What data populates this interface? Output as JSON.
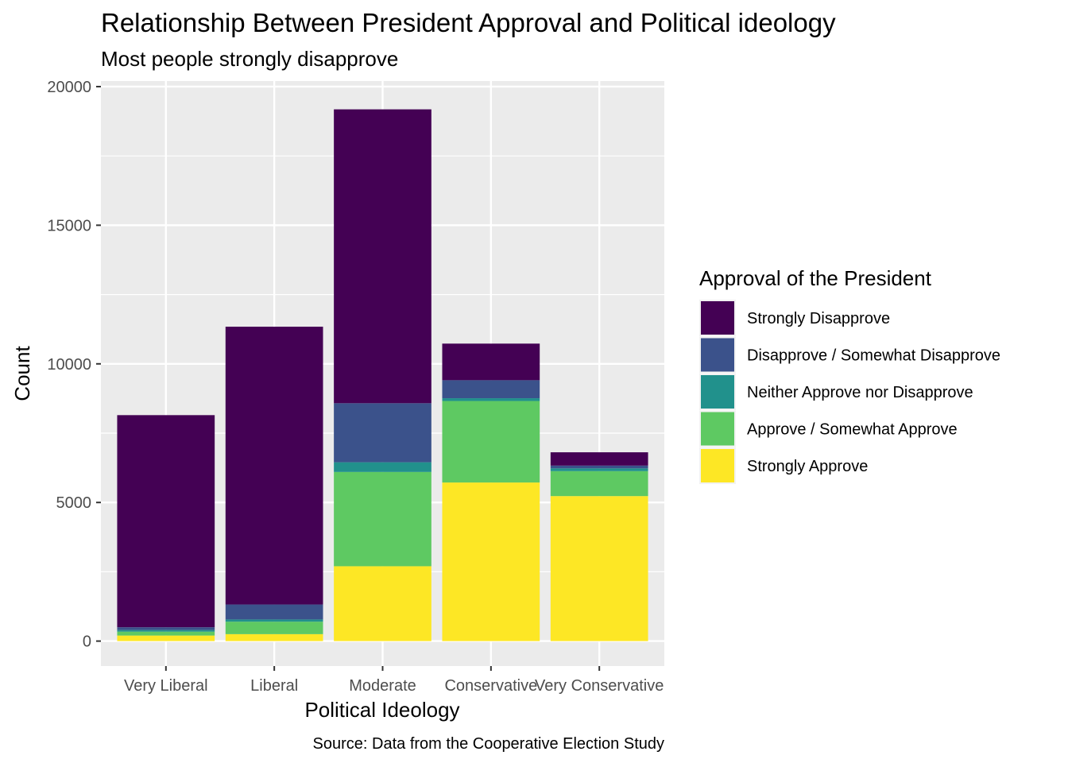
{
  "chart_data": {
    "type": "bar",
    "stacked": true,
    "title": "Relationship Between President Approval and Political ideology",
    "subtitle": "Most people strongly disapprove",
    "xlabel": "Political Ideology",
    "ylabel": "Count",
    "caption": "Source: Data from the Cooperative Election Study",
    "categories": [
      "Very Liberal",
      "Liberal",
      "Moderate",
      "Conservative",
      "Very Conservative"
    ],
    "ylim": [
      -900,
      20200
    ],
    "yticks": [
      0,
      5000,
      10000,
      15000,
      20000
    ],
    "ytick_labels": [
      "0",
      "5000",
      "10000",
      "15000",
      "20000"
    ],
    "grid": true,
    "legend": {
      "title": "Approval of the President",
      "position": "right"
    },
    "series": [
      {
        "name": "Strongly Approve",
        "color": "#FDE725",
        "values": [
          200,
          250,
          2700,
          5720,
          5230
        ]
      },
      {
        "name": "Approve / Somewhat Approve",
        "color": "#5EC962",
        "values": [
          140,
          450,
          3400,
          2940,
          900
        ]
      },
      {
        "name": "Neither Approve nor Disapprove",
        "color": "#21918C",
        "values": [
          60,
          80,
          350,
          100,
          100
        ]
      },
      {
        "name": "Disapprove / Somewhat Disapprove",
        "color": "#3B528B",
        "values": [
          100,
          540,
          2130,
          650,
          100
        ]
      },
      {
        "name": "Strongly Disapprove",
        "color": "#440154",
        "values": [
          7650,
          10020,
          10600,
          1320,
          480
        ]
      }
    ]
  }
}
